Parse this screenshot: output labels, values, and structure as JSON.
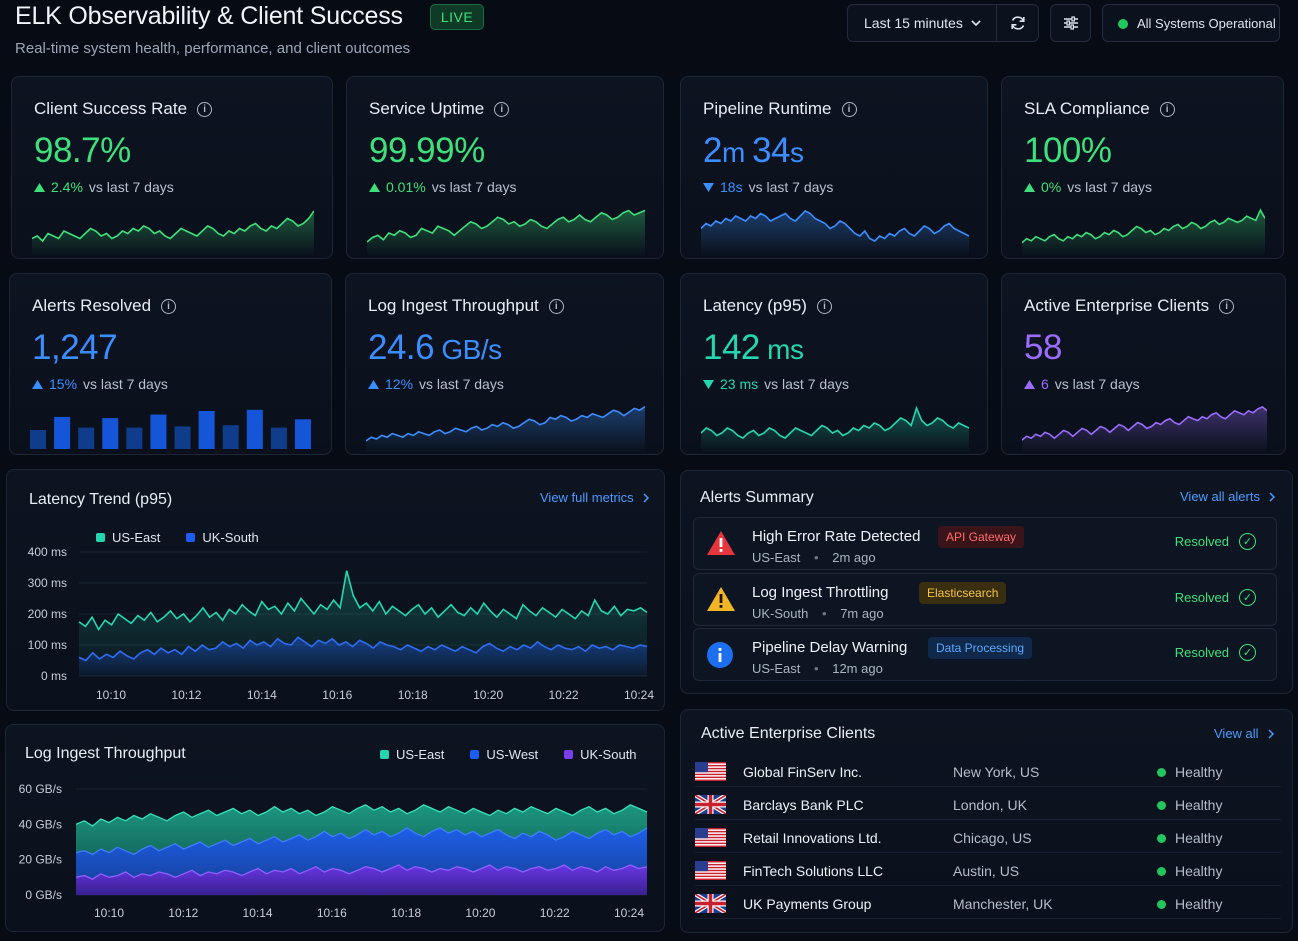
{
  "header": {
    "title": "ELK Observability & Client Success",
    "live_label": "LIVE",
    "subtitle": "Real-time system health, performance, and client outcomes",
    "time_range": "Last 15 minutes",
    "status_label": "All Systems Operational"
  },
  "kpis": [
    {
      "title": "Client Success Rate",
      "value": "98.7%",
      "unit": "",
      "change": "2.4%",
      "change_suffix": "vs last 7 days",
      "direction": "up",
      "color": "#3ee07b",
      "spark": [
        22,
        23,
        21,
        24,
        23,
        22,
        25,
        24,
        23,
        22,
        24,
        26,
        25,
        23,
        24,
        22,
        23,
        25,
        24,
        26,
        25,
        27,
        26,
        24,
        25,
        23,
        22,
        24,
        26,
        25,
        24,
        23,
        25,
        27,
        26,
        24,
        23,
        25,
        24,
        26,
        25,
        27,
        28,
        26,
        25,
        27,
        26,
        28,
        30,
        29,
        27,
        28,
        30,
        33
      ]
    },
    {
      "title": "Service Uptime",
      "value": "99.99%",
      "unit": "",
      "change": "0.01%",
      "change_suffix": "vs last 7 days",
      "direction": "up",
      "color": "#3ee07b",
      "spark": [
        20,
        22,
        23,
        21,
        24,
        23,
        25,
        24,
        22,
        23,
        26,
        25,
        24,
        27,
        26,
        25,
        23,
        25,
        27,
        29,
        28,
        26,
        27,
        29,
        31,
        30,
        28,
        29,
        27,
        28,
        30,
        29,
        27,
        26,
        28,
        30,
        31,
        29,
        30,
        32,
        30,
        29,
        31,
        33,
        32,
        30,
        31,
        33,
        34,
        32,
        33,
        34
      ]
    },
    {
      "title": "Pipeline Runtime",
      "value": "2",
      "value_b": "m ",
      "value_c": "34",
      "value_d": "s",
      "change": "18s",
      "change_suffix": "vs last 7 days",
      "direction": "down",
      "color": "#3b8eff",
      "spark": [
        30,
        32,
        31,
        33,
        32,
        34,
        33,
        35,
        34,
        33,
        35,
        34,
        36,
        35,
        33,
        34,
        35,
        36,
        34,
        33,
        35,
        37,
        36,
        34,
        33,
        32,
        30,
        31,
        33,
        32,
        30,
        28,
        27,
        29,
        26,
        25,
        27,
        26,
        28,
        27,
        29,
        30,
        28,
        27,
        29,
        31,
        30,
        28,
        29,
        31,
        32,
        30,
        29,
        28,
        27
      ]
    },
    {
      "title": "SLA Compliance",
      "value": "100%",
      "unit": "",
      "change": "0%",
      "change_suffix": "vs last 7 days",
      "direction": "up",
      "color": "#3ee07b",
      "spark": [
        22,
        24,
        23,
        25,
        24,
        23,
        25,
        26,
        24,
        23,
        25,
        24,
        26,
        25,
        27,
        26,
        24,
        25,
        27,
        26,
        28,
        27,
        25,
        26,
        28,
        30,
        29,
        27,
        28,
        26,
        27,
        29,
        28,
        30,
        31,
        29,
        30,
        32,
        31,
        29,
        30,
        32,
        33,
        31,
        32,
        34,
        33,
        32,
        33,
        35,
        34,
        33,
        38,
        34
      ]
    },
    {
      "title": "Alerts Resolved",
      "value": "1,247",
      "unit": "",
      "change": "15%",
      "change_suffix": "vs last 7 days",
      "direction": "up",
      "color": "#3b8eff",
      "bars": [
        16,
        27,
        18,
        26,
        18,
        29,
        19,
        32,
        20,
        33,
        18,
        25
      ]
    },
    {
      "title": "Log Ingest Throughput",
      "value": "24.6",
      "unit": " GB/s",
      "change": "12%",
      "change_suffix": "vs last 7 days",
      "direction": "up",
      "color": "#3b8eff",
      "spark": [
        20,
        22,
        21,
        23,
        22,
        24,
        23,
        22,
        24,
        23,
        25,
        24,
        23,
        25,
        26,
        24,
        25,
        27,
        26,
        25,
        27,
        28,
        26,
        27,
        29,
        28,
        30,
        29,
        27,
        28,
        30,
        32,
        31,
        29,
        30,
        33,
        32,
        34,
        33,
        31,
        32,
        34,
        33,
        35,
        34,
        33,
        35,
        37,
        36,
        34,
        36,
        38,
        37,
        39
      ]
    },
    {
      "title": "Latency (p95)",
      "value": "142",
      "unit": " ms",
      "change": "23 ms",
      "change_suffix": "vs last 7 days",
      "direction": "down",
      "color": "#25d7b0",
      "spark": [
        26,
        28,
        27,
        25,
        26,
        28,
        27,
        25,
        24,
        26,
        27,
        25,
        26,
        28,
        27,
        25,
        24,
        26,
        28,
        27,
        26,
        25,
        27,
        29,
        28,
        26,
        27,
        25,
        26,
        28,
        27,
        29,
        28,
        30,
        29,
        27,
        28,
        30,
        32,
        31,
        29,
        36,
        31,
        29,
        30,
        32,
        31,
        29,
        28,
        30,
        29,
        28
      ]
    },
    {
      "title": "Active Enterprise Clients",
      "value": "58",
      "unit": "",
      "change": "6",
      "change_suffix": "vs last 7 days",
      "direction": "up",
      "color": "#9b6cff",
      "spark": [
        20,
        22,
        21,
        23,
        22,
        24,
        23,
        21,
        23,
        25,
        24,
        22,
        24,
        26,
        25,
        23,
        25,
        27,
        26,
        24,
        26,
        28,
        27,
        25,
        27,
        29,
        28,
        26,
        27,
        29,
        28,
        30,
        31,
        29,
        28,
        30,
        32,
        31,
        30,
        32,
        31,
        33,
        34,
        32,
        31,
        33,
        35,
        34,
        33,
        35,
        34,
        36,
        37,
        35
      ]
    }
  ],
  "latency_trend": {
    "title": "Latency Trend (p95)",
    "link": "View full metrics",
    "legend": [
      {
        "name": "US-East",
        "color": "#25d7b0"
      },
      {
        "name": "UK-South",
        "color": "#1d5cf0"
      }
    ]
  },
  "alerts": {
    "title": "Alerts Summary",
    "link": "View all alerts",
    "items": [
      {
        "title": "High Error Rate Detected",
        "tag": "API Gateway",
        "tag_color": "#ff6b6b",
        "tag_bg": "#3a1418",
        "region": "US-East",
        "time": "2m ago",
        "status": "Resolved",
        "icon": "error-icon"
      },
      {
        "title": "Log Ingest Throttling",
        "tag": "Elasticsearch",
        "tag_color": "#f5c542",
        "tag_bg": "#3a2e10",
        "region": "UK-South",
        "time": "7m ago",
        "status": "Resolved",
        "icon": "warning-icon"
      },
      {
        "title": "Pipeline Delay Warning",
        "tag": "Data Processing",
        "tag_color": "#5aa8ff",
        "tag_bg": "#10284a",
        "region": "US-East",
        "time": "12m ago",
        "status": "Resolved",
        "icon": "info-icon"
      }
    ]
  },
  "throughput": {
    "title": "Log Ingest Throughput",
    "legend": [
      {
        "name": "US-East",
        "color": "#25d7b0"
      },
      {
        "name": "US-West",
        "color": "#1d5cf0"
      },
      {
        "name": "UK-South",
        "color": "#7b3ff2"
      }
    ]
  },
  "clients": {
    "title": "Active Enterprise Clients",
    "link": "View all",
    "items": [
      {
        "name": "Global FinServ Inc.",
        "location": "New York, US",
        "status": "Healthy",
        "flag": "us"
      },
      {
        "name": "Barclays Bank PLC",
        "location": "London, UK",
        "status": "Healthy",
        "flag": "uk"
      },
      {
        "name": "Retail Innovations Ltd.",
        "location": "Chicago, US",
        "status": "Healthy",
        "flag": "us"
      },
      {
        "name": "FinTech Solutions LLC",
        "location": "Austin, US",
        "status": "Healthy",
        "flag": "us"
      },
      {
        "name": "UK Payments Group",
        "location": "Manchester, UK",
        "status": "Healthy",
        "flag": "uk"
      }
    ]
  },
  "chart_data": [
    {
      "type": "line",
      "title": "Latency Trend (p95)",
      "x_ticks": [
        "10:10",
        "10:12",
        "10:14",
        "10:16",
        "10:18",
        "10:20",
        "10:22",
        "10:24"
      ],
      "y_ticks": [
        "400 ms",
        "300 ms",
        "200 ms",
        "100 ms",
        "0 ms"
      ],
      "ylim": [
        0,
        400
      ],
      "series": [
        {
          "name": "US-East",
          "values": [
            175,
            160,
            190,
            150,
            180,
            165,
            200,
            185,
            170,
            195,
            180,
            205,
            175,
            190,
            210,
            185,
            200,
            175,
            195,
            220,
            190,
            205,
            180,
            215,
            200,
            230,
            210,
            195,
            240,
            215,
            225,
            200,
            235,
            210,
            250,
            225,
            200,
            230,
            215,
            245,
            220,
            340,
            260,
            220,
            235,
            210,
            240,
            200,
            225,
            210,
            195,
            215,
            230,
            200,
            220,
            190,
            210,
            230,
            205,
            195,
            220,
            200,
            235,
            210,
            190,
            215,
            200,
            185,
            230,
            210,
            195,
            220,
            205,
            190,
            215,
            200,
            185,
            210,
            195,
            245,
            210,
            200,
            225,
            195,
            215,
            210,
            220,
            205
          ]
        },
        {
          "name": "UK-South",
          "values": [
            60,
            50,
            75,
            55,
            70,
            60,
            80,
            65,
            55,
            75,
            85,
            70,
            90,
            75,
            85,
            70,
            95,
            80,
            100,
            85,
            90,
            110,
            95,
            105,
            90,
            115,
            100,
            110,
            95,
            120,
            105,
            100,
            125,
            110,
            95,
            115,
            105,
            120,
            100,
            110,
            95,
            115,
            105,
            90,
            110,
            100,
            95,
            85,
            100,
            90,
            80,
            95,
            85,
            100,
            90,
            80,
            95,
            85,
            75,
            95,
            105,
            90,
            80,
            95,
            85,
            100,
            90,
            110,
            95,
            85,
            100,
            90,
            85,
            95,
            80,
            100,
            90,
            95,
            85,
            100,
            95,
            90,
            100,
            95
          ]
        }
      ]
    },
    {
      "type": "area",
      "title": "Log Ingest Throughput",
      "x_ticks": [
        "10:10",
        "10:12",
        "10:14",
        "10:16",
        "10:18",
        "10:20",
        "10:22",
        "10:24"
      ],
      "y_ticks": [
        "60 GB/s",
        "40 GB/s",
        "20 GB/s",
        "0 GB/s"
      ],
      "ylim": [
        0,
        60
      ],
      "series": [
        {
          "name": "US-East",
          "values": [
            40,
            42,
            39,
            43,
            41,
            44,
            42,
            45,
            43,
            46,
            44,
            42,
            45,
            47,
            44,
            46,
            48,
            45,
            47,
            49,
            46,
            48,
            45,
            47,
            50,
            47,
            49,
            46,
            48,
            45,
            47,
            50,
            48,
            46,
            49,
            51,
            48,
            50,
            47,
            49,
            46,
            48,
            51,
            49,
            47,
            50,
            48,
            46,
            49,
            47,
            45,
            48,
            46,
            49,
            47,
            50,
            48,
            46,
            49,
            47,
            45,
            48,
            50,
            47,
            49,
            46,
            48,
            51,
            49,
            47
          ]
        },
        {
          "name": "US-West",
          "values": [
            24,
            25,
            23,
            26,
            24,
            27,
            25,
            23,
            26,
            28,
            25,
            27,
            29,
            26,
            28,
            30,
            27,
            29,
            31,
            28,
            30,
            32,
            29,
            31,
            33,
            30,
            32,
            34,
            31,
            33,
            36,
            33,
            35,
            32,
            34,
            37,
            34,
            36,
            33,
            35,
            38,
            35,
            33,
            36,
            38,
            35,
            37,
            34,
            36,
            33,
            35,
            37,
            34,
            32,
            35,
            33,
            36,
            34,
            31,
            33,
            36,
            34,
            32,
            35,
            37,
            34,
            36,
            33,
            35,
            38
          ]
        },
        {
          "name": "UK-South",
          "values": [
            10,
            11,
            9,
            12,
            10,
            11,
            13,
            10,
            12,
            11,
            13,
            12,
            10,
            12,
            14,
            11,
            13,
            12,
            14,
            13,
            11,
            13,
            15,
            12,
            14,
            13,
            15,
            12,
            14,
            16,
            13,
            15,
            14,
            12,
            14,
            16,
            15,
            13,
            15,
            17,
            14,
            16,
            15,
            13,
            15,
            14,
            16,
            15,
            13,
            15,
            17,
            14,
            16,
            15,
            13,
            15,
            16,
            14,
            15,
            17,
            14,
            16,
            15,
            13,
            16,
            14,
            15,
            17,
            15,
            16
          ]
        }
      ]
    }
  ]
}
